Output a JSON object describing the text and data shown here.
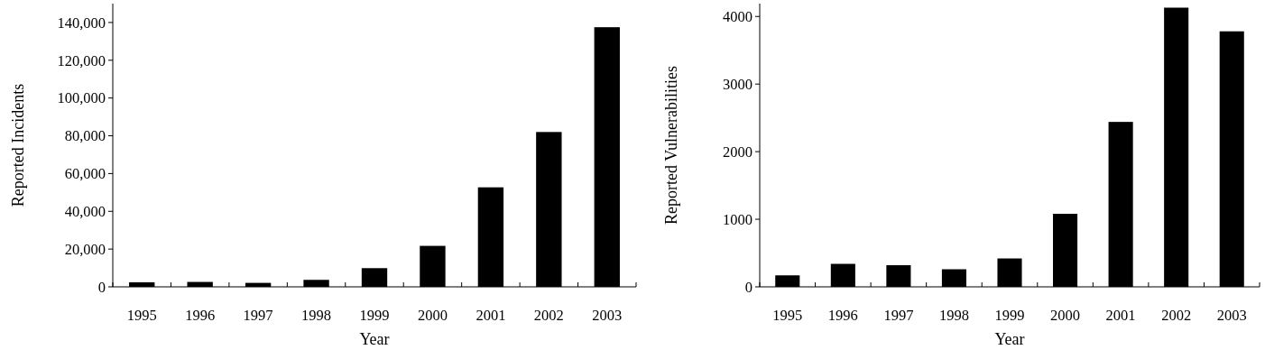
{
  "chart_data": [
    {
      "type": "bar",
      "xlabel": "Year",
      "ylabel": "Reported Incidents",
      "categories": [
        "1995",
        "1996",
        "1997",
        "1998",
        "1999",
        "2000",
        "2001",
        "2002",
        "2003"
      ],
      "values": [
        2400,
        2600,
        2100,
        3700,
        9900,
        21700,
        52700,
        82000,
        137500
      ],
      "color": "#000000",
      "ylim": [
        0,
        150000
      ],
      "yticks": [
        0,
        {
          "value": 20000,
          "label": "20,000"
        },
        {
          "value": 40000,
          "label": "40,000"
        },
        {
          "value": 60000,
          "label": "60,000"
        },
        {
          "value": 80000,
          "label": "80,000"
        },
        {
          "value": 100000,
          "label": "100,000"
        },
        {
          "value": 120000,
          "label": "120,000"
        },
        {
          "value": 140000,
          "label": "140,000"
        }
      ],
      "grid": false
    },
    {
      "type": "bar",
      "xlabel": "Year",
      "ylabel": "Reported Vulnerabilities",
      "categories": [
        "1995",
        "1996",
        "1997",
        "1998",
        "1999",
        "2000",
        "2001",
        "2002",
        "2003"
      ],
      "values": [
        170,
        340,
        320,
        260,
        420,
        1080,
        2440,
        4130,
        3780
      ],
      "color": "#000000",
      "ylim": [
        0,
        4190
      ],
      "yticks": [
        0,
        1000,
        2000,
        3000,
        4000
      ],
      "grid": false
    }
  ]
}
